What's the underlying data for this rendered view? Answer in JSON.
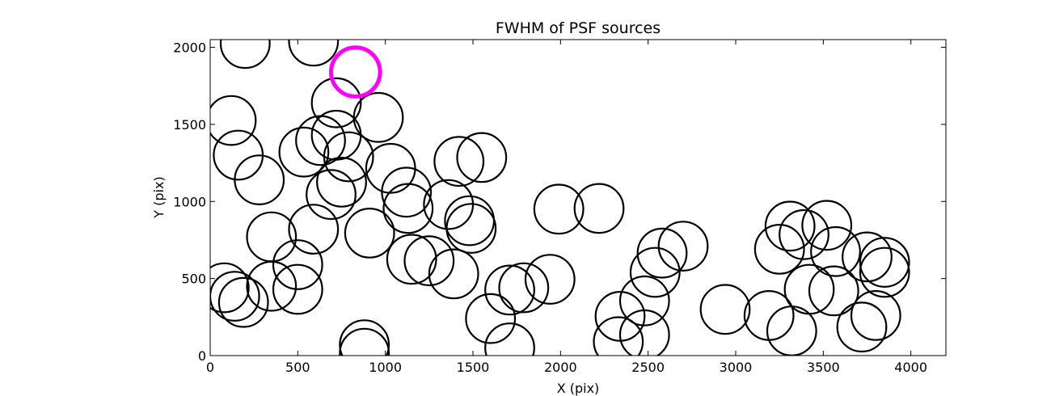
{
  "chart_data": {
    "type": "scatter",
    "title": "FWHM of PSF sources",
    "xlabel": "X (pix)",
    "ylabel": "Y (pix)",
    "xlim": [
      0,
      4200
    ],
    "ylim": [
      0,
      2050
    ],
    "xticks": [
      0,
      500,
      1000,
      1500,
      2000,
      2500,
      3000,
      3500,
      4000
    ],
    "yticks": [
      0,
      500,
      1000,
      1500,
      2000
    ],
    "grid": false,
    "legend": "none",
    "marker_radius": 140,
    "series": [
      {
        "color": "#000000",
        "points": [
          [
            200,
            2025
          ],
          [
            590,
            2040
          ],
          [
            120,
            1525
          ],
          [
            720,
            1640
          ],
          [
            960,
            1545
          ],
          [
            160,
            1300
          ],
          [
            535,
            1320
          ],
          [
            630,
            1395
          ],
          [
            720,
            1430
          ],
          [
            790,
            1290
          ],
          [
            280,
            1140
          ],
          [
            750,
            1125
          ],
          [
            1030,
            1215
          ],
          [
            1120,
            1060
          ],
          [
            1130,
            955
          ],
          [
            690,
            1045
          ],
          [
            1360,
            980
          ],
          [
            1420,
            1260
          ],
          [
            1550,
            1285
          ],
          [
            1480,
            875
          ],
          [
            1490,
            825
          ],
          [
            1990,
            950
          ],
          [
            2220,
            955
          ],
          [
            350,
            770
          ],
          [
            590,
            820
          ],
          [
            910,
            795
          ],
          [
            500,
            590
          ],
          [
            1150,
            625
          ],
          [
            1250,
            615
          ],
          [
            1390,
            530
          ],
          [
            80,
            440
          ],
          [
            140,
            385
          ],
          [
            190,
            345
          ],
          [
            350,
            450
          ],
          [
            500,
            430
          ],
          [
            1600,
            240
          ],
          [
            1710,
            425
          ],
          [
            1790,
            440
          ],
          [
            1940,
            495
          ],
          [
            2340,
            255
          ],
          [
            2480,
            355
          ],
          [
            2540,
            540
          ],
          [
            2580,
            665
          ],
          [
            2700,
            710
          ],
          [
            2330,
            90
          ],
          [
            2480,
            135
          ],
          [
            1710,
            50
          ],
          [
            880,
            70
          ],
          [
            880,
            15
          ],
          [
            2940,
            300
          ],
          [
            3190,
            260
          ],
          [
            3320,
            160
          ],
          [
            3250,
            690
          ],
          [
            3310,
            840
          ],
          [
            3390,
            785
          ],
          [
            3420,
            430
          ],
          [
            3560,
            420
          ],
          [
            3570,
            675
          ],
          [
            3520,
            845
          ],
          [
            3720,
            185
          ],
          [
            3800,
            260
          ],
          [
            3750,
            640
          ],
          [
            3850,
            605
          ],
          [
            3850,
            540
          ]
        ]
      },
      {
        "color": "#ff00ff",
        "points": [
          [
            830,
            1840
          ]
        ]
      }
    ]
  }
}
